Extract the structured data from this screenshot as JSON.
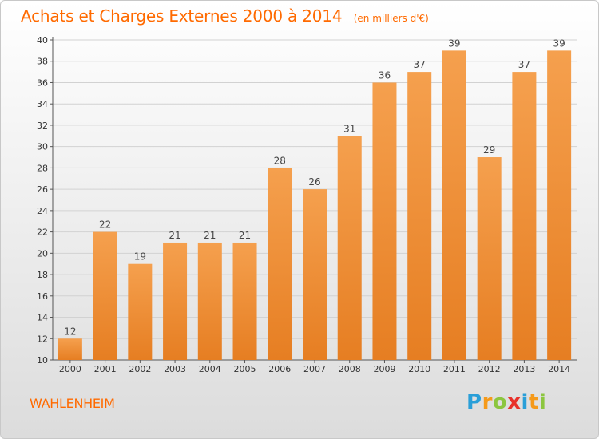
{
  "title": "Achats et Charges Externes 2000 à 2014",
  "subtitle": "(en milliers d'€)",
  "place": "WAHLENHEIM",
  "logo": {
    "letters": [
      "P",
      "r",
      "o",
      "x",
      "i",
      "t",
      "i"
    ],
    "colors": [
      "#2a9fd8",
      "#f59a1a",
      "#8cc63f",
      "#e8312a",
      "#2a9fd8",
      "#f59a1a",
      "#8cc63f"
    ]
  },
  "colors": {
    "bar_top": "#f5a04e",
    "bar_bottom": "#e67e22",
    "accent": "#ff6a00"
  },
  "chart_data": {
    "type": "bar",
    "categories": [
      "2000",
      "2001",
      "2002",
      "2003",
      "2004",
      "2005",
      "2006",
      "2007",
      "2008",
      "2009",
      "2010",
      "2011",
      "2012",
      "2013",
      "2014"
    ],
    "values": [
      12,
      22,
      19,
      21,
      21,
      21,
      28,
      26,
      31,
      36,
      37,
      39,
      29,
      37,
      39
    ],
    "ylim": [
      10,
      40
    ],
    "yticks": [
      10,
      12,
      14,
      16,
      18,
      20,
      22,
      24,
      26,
      28,
      30,
      32,
      34,
      36,
      38,
      40
    ],
    "grid": true,
    "xlabel": "",
    "ylabel": ""
  }
}
